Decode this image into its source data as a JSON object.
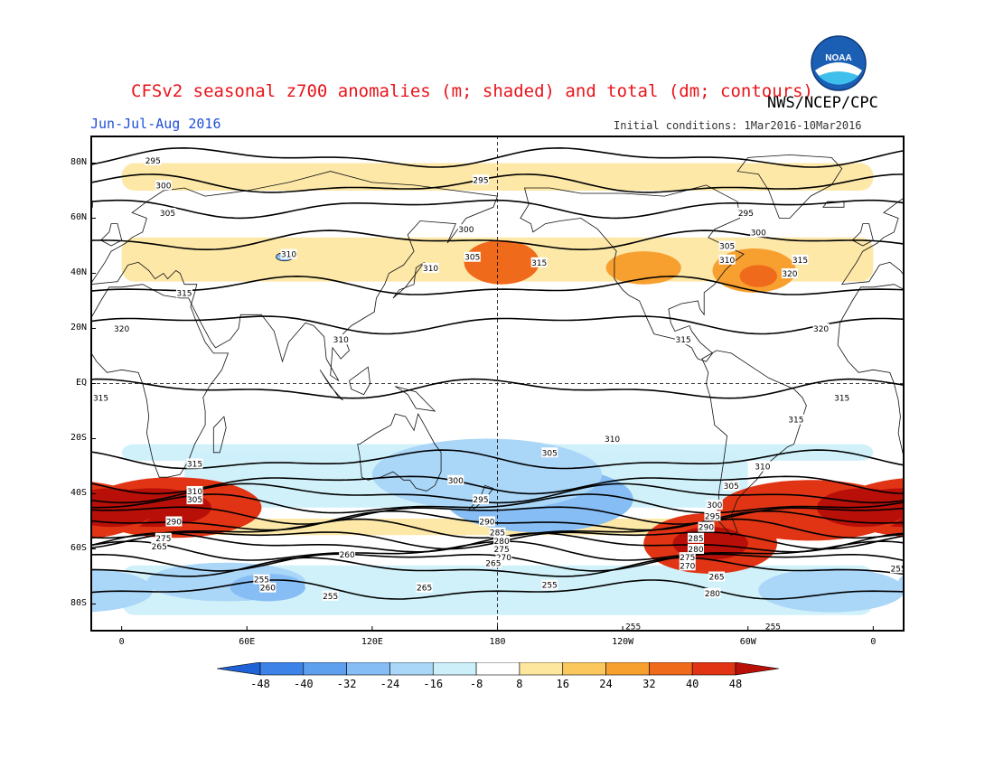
{
  "header": {
    "title": "CFSv2 seasonal z700 anomalies (m; shaded) and total (dm; contours)",
    "agency": "NWS/NCEP/CPC",
    "period": "Jun-Jul-Aug 2016",
    "initial_conditions": "Initial conditions: 1Mar2016-10Mar2016",
    "logo_text": "NOAA"
  },
  "axes": {
    "lat_labels": [
      "80N",
      "60N",
      "40N",
      "20N",
      "EQ",
      "20S",
      "40S",
      "60S",
      "80S"
    ],
    "lat_values": [
      80,
      60,
      40,
      20,
      0,
      -20,
      -40,
      -60,
      -80
    ],
    "lon_labels": [
      "0",
      "60E",
      "120E",
      "180",
      "120W",
      "60W",
      "0"
    ],
    "lon_values": [
      0,
      60,
      120,
      180,
      240,
      300,
      360
    ],
    "lon_range": [
      -15,
      375
    ],
    "lat_range": [
      -90,
      90
    ]
  },
  "colorbar": {
    "tick_labels": [
      "-48",
      "-40",
      "-32",
      "-24",
      "-16",
      "-8",
      "8",
      "16",
      "24",
      "32",
      "40",
      "48"
    ],
    "colors": [
      "#1f62d6",
      "#3d82e6",
      "#5fa0ee",
      "#86bdf5",
      "#aad6f8",
      "#cceffa",
      "#ffffff",
      "#fde69e",
      "#fbc85e",
      "#f7a030",
      "#f06a1c",
      "#e03414",
      "#b81008"
    ]
  },
  "anomaly_regions": [
    {
      "lon": 25,
      "lat": -45,
      "rx": 42,
      "ry": 11,
      "level": 5
    },
    {
      "lon": 15,
      "lat": -45,
      "rx": 28,
      "ry": 7,
      "level": 6
    },
    {
      "lon": 330,
      "lat": -46,
      "rx": 45,
      "ry": 11,
      "level": 5
    },
    {
      "lon": 355,
      "lat": -45,
      "rx": 22,
      "ry": 7,
      "level": 6
    },
    {
      "lon": 282,
      "lat": -58,
      "rx": 32,
      "ry": 11,
      "level": 5
    },
    {
      "lon": 282,
      "lat": -58,
      "rx": 18,
      "ry": 6,
      "level": 6
    },
    {
      "lon": 182,
      "lat": 44,
      "rx": 18,
      "ry": 8,
      "level": 4
    },
    {
      "lon": 303,
      "lat": 41,
      "rx": 20,
      "ry": 8,
      "level": 3
    },
    {
      "lon": 305,
      "lat": 39,
      "rx": 9,
      "ry": 4,
      "level": 4
    },
    {
      "lon": 250,
      "lat": 42,
      "rx": 18,
      "ry": 6,
      "level": 3
    },
    {
      "lon": 200,
      "lat": -42,
      "rx": 45,
      "ry": 12,
      "level": -3
    },
    {
      "lon": 175,
      "lat": -33,
      "rx": 55,
      "ry": 13,
      "level": -2
    },
    {
      "lon": 50,
      "lat": -72,
      "rx": 38,
      "ry": 7,
      "level": -2
    },
    {
      "lon": 70,
      "lat": -74,
      "rx": 18,
      "ry": 5,
      "level": -3
    },
    {
      "lon": 340,
      "lat": -75,
      "rx": 35,
      "ry": 8,
      "level": -2
    }
  ],
  "anomaly_bands": [
    {
      "lon0": 0,
      "lon1": 360,
      "lat": -25,
      "h": 6,
      "level": -1
    },
    {
      "lon0": 30,
      "lon1": 300,
      "lat": -35,
      "h": 20,
      "level": -1
    },
    {
      "lon0": 0,
      "lon1": 360,
      "lat": -75,
      "h": 18,
      "level": -1
    },
    {
      "lon0": 0,
      "lon1": 360,
      "lat": 45,
      "h": 16,
      "level": 1
    },
    {
      "lon0": 0,
      "lon1": 360,
      "lat": 75,
      "h": 10,
      "level": 1
    },
    {
      "lon0": 0,
      "lon1": 360,
      "lat": -52,
      "h": 6,
      "level": 1
    }
  ],
  "contours": [
    {
      "label": "295",
      "lat": 82
    },
    {
      "label": "300",
      "lat": 72
    },
    {
      "label": "305",
      "lat": 64
    },
    {
      "label": "310",
      "lat": 52
    },
    {
      "label": "315",
      "lat": 35
    },
    {
      "label": "320",
      "lat": 22
    },
    {
      "label": "315",
      "lat": -2
    },
    {
      "label": "315",
      "lat": -28
    },
    {
      "label": "310",
      "lat": -36
    },
    {
      "label": "305",
      "lat": -40
    },
    {
      "label": "300",
      "lat": -44
    },
    {
      "label": "295",
      "lat": -47
    },
    {
      "label": "290",
      "lat": -50
    },
    {
      "label": "285",
      "lat": -53
    },
    {
      "label": "280",
      "lat": -56
    },
    {
      "label": "275",
      "lat": -58
    },
    {
      "label": "270",
      "lat": -61
    },
    {
      "label": "265",
      "lat": -64
    },
    {
      "label": "260",
      "lat": -67
    },
    {
      "label": "255",
      "lat": -75
    }
  ],
  "contour_labels": [
    {
      "text": "295",
      "lon": 15,
      "lat": 81
    },
    {
      "text": "300",
      "lon": 20,
      "lat": 72
    },
    {
      "text": "305",
      "lon": 22,
      "lat": 62
    },
    {
      "text": "310",
      "lon": 80,
      "lat": 47
    },
    {
      "text": "315",
      "lon": 30,
      "lat": 33
    },
    {
      "text": "320",
      "lon": 0,
      "lat": 20
    },
    {
      "text": "310",
      "lon": 105,
      "lat": 16
    },
    {
      "text": "295",
      "lon": 172,
      "lat": 74
    },
    {
      "text": "300",
      "lon": 165,
      "lat": 56
    },
    {
      "text": "305",
      "lon": 168,
      "lat": 46
    },
    {
      "text": "310",
      "lon": 148,
      "lat": 42
    },
    {
      "text": "315",
      "lon": 200,
      "lat": 44
    },
    {
      "text": "315",
      "lon": 269,
      "lat": 16
    },
    {
      "text": "295",
      "lon": 299,
      "lat": 62
    },
    {
      "text": "300",
      "lon": 305,
      "lat": 55
    },
    {
      "text": "305",
      "lon": 290,
      "lat": 50
    },
    {
      "text": "310",
      "lon": 290,
      "lat": 45
    },
    {
      "text": "315",
      "lon": 325,
      "lat": 45
    },
    {
      "text": "320",
      "lon": 320,
      "lat": 40
    },
    {
      "text": "320",
      "lon": 335,
      "lat": 20
    },
    {
      "text": "315",
      "lon": -10,
      "lat": -5
    },
    {
      "text": "315",
      "lon": 345,
      "lat": -5
    },
    {
      "text": "315",
      "lon": 323,
      "lat": -13
    },
    {
      "text": "310",
      "lon": 235,
      "lat": -20
    },
    {
      "text": "305",
      "lon": 205,
      "lat": -25
    },
    {
      "text": "300",
      "lon": 160,
      "lat": -35
    },
    {
      "text": "295",
      "lon": 172,
      "lat": -42
    },
    {
      "text": "290",
      "lon": 175,
      "lat": -50
    },
    {
      "text": "285",
      "lon": 180,
      "lat": -54
    },
    {
      "text": "280",
      "lon": 182,
      "lat": -57
    },
    {
      "text": "275",
      "lon": 182,
      "lat": -60
    },
    {
      "text": "270",
      "lon": 183,
      "lat": -63
    },
    {
      "text": "265",
      "lon": 178,
      "lat": -65
    },
    {
      "text": "260",
      "lon": 108,
      "lat": -62
    },
    {
      "text": "255",
      "lon": 67,
      "lat": -71
    },
    {
      "text": "260",
      "lon": 70,
      "lat": -74
    },
    {
      "text": "255",
      "lon": 100,
      "lat": -77
    },
    {
      "text": "265",
      "lon": 145,
      "lat": -74
    },
    {
      "text": "255",
      "lon": 205,
      "lat": -73
    },
    {
      "text": "255",
      "lon": 245,
      "lat": -88
    },
    {
      "text": "310",
      "lon": 35,
      "lat": -39
    },
    {
      "text": "305",
      "lon": 35,
      "lat": -42
    },
    {
      "text": "315",
      "lon": 35,
      "lat": -29
    },
    {
      "text": "300",
      "lon": 284,
      "lat": -44
    },
    {
      "text": "295",
      "lon": 283,
      "lat": -48
    },
    {
      "text": "290",
      "lon": 280,
      "lat": -52
    },
    {
      "text": "285",
      "lon": 275,
      "lat": -56
    },
    {
      "text": "280",
      "lon": 275,
      "lat": -60
    },
    {
      "text": "275",
      "lon": 271,
      "lat": -63
    },
    {
      "text": "270",
      "lon": 271,
      "lat": -66
    },
    {
      "text": "265",
      "lon": 285,
      "lat": -70
    },
    {
      "text": "280",
      "lon": 283,
      "lat": -76
    },
    {
      "text": "255",
      "lon": 312,
      "lat": -88
    },
    {
      "text": "310",
      "lon": 307,
      "lat": -30
    },
    {
      "text": "305",
      "lon": 292,
      "lat": -37
    },
    {
      "text": "255",
      "lon": 372,
      "lat": -67
    },
    {
      "text": "290",
      "lon": 25,
      "lat": -50
    },
    {
      "text": "275",
      "lon": 20,
      "lat": -56
    },
    {
      "text": "265",
      "lon": 18,
      "lat": -59
    }
  ],
  "land": [
    [
      [
        -15,
        36
      ],
      [
        -8,
        44
      ],
      [
        -5,
        48
      ],
      [
        2,
        51
      ],
      [
        5,
        53
      ],
      [
        10,
        55
      ],
      [
        12,
        60
      ],
      [
        5,
        62
      ],
      [
        12,
        66
      ],
      [
        20,
        70
      ],
      [
        30,
        71
      ],
      [
        40,
        68
      ],
      [
        60,
        70
      ],
      [
        80,
        73
      ],
      [
        100,
        77
      ],
      [
        120,
        73
      ],
      [
        140,
        72
      ],
      [
        160,
        70
      ],
      [
        180,
        68
      ],
      [
        178,
        64
      ],
      [
        165,
        60
      ],
      [
        156,
        51
      ],
      [
        160,
        58
      ],
      [
        143,
        59
      ],
      [
        137,
        54
      ],
      [
        140,
        48
      ],
      [
        135,
        43
      ],
      [
        128,
        40
      ],
      [
        126,
        36
      ],
      [
        122,
        31
      ],
      [
        121,
        26
      ],
      [
        110,
        21
      ],
      [
        106,
        18
      ],
      [
        109,
        12
      ],
      [
        105,
        9
      ],
      [
        101,
        13
      ],
      [
        100,
        3
      ],
      [
        104,
        1
      ],
      [
        98,
        9
      ],
      [
        97,
        17
      ],
      [
        92,
        21
      ],
      [
        88,
        22
      ],
      [
        80,
        15
      ],
      [
        77,
        8
      ],
      [
        73,
        19
      ],
      [
        67,
        25
      ],
      [
        57,
        25
      ],
      [
        56,
        20
      ],
      [
        52,
        16
      ],
      [
        45,
        13
      ],
      [
        43,
        15
      ],
      [
        38,
        22
      ],
      [
        34,
        28
      ],
      [
        32,
        31
      ],
      [
        28,
        31
      ],
      [
        20,
        32
      ],
      [
        10,
        36
      ],
      [
        0,
        35
      ],
      [
        -6,
        35
      ],
      [
        -10,
        30
      ],
      [
        -16,
        22
      ],
      [
        -17,
        14
      ],
      [
        -12,
        8
      ],
      [
        -7,
        4
      ],
      [
        0,
        5
      ],
      [
        8,
        4
      ],
      [
        10,
        0
      ],
      [
        12,
        -6
      ],
      [
        13,
        -12
      ],
      [
        12,
        -18
      ],
      [
        15,
        -28
      ],
      [
        18,
        -34
      ],
      [
        22,
        -34
      ],
      [
        28,
        -33
      ],
      [
        32,
        -28
      ],
      [
        35,
        -22
      ],
      [
        40,
        -15
      ],
      [
        40,
        -10
      ],
      [
        39,
        -5
      ],
      [
        42,
        -1
      ],
      [
        48,
        5
      ],
      [
        51,
        11
      ],
      [
        44,
        11
      ],
      [
        40,
        15
      ],
      [
        36,
        22
      ],
      [
        33,
        28
      ],
      [
        35,
        33
      ],
      [
        36,
        36
      ],
      [
        30,
        36
      ],
      [
        28,
        40
      ],
      [
        26,
        41
      ],
      [
        22,
        38
      ],
      [
        20,
        40
      ],
      [
        16,
        38
      ],
      [
        13,
        41
      ],
      [
        8,
        44
      ],
      [
        3,
        43
      ],
      [
        -2,
        37
      ],
      [
        -15,
        36
      ]
    ],
    [
      [
        113,
        -22
      ],
      [
        114,
        -26
      ],
      [
        115,
        -34
      ],
      [
        118,
        -35
      ],
      [
        124,
        -34
      ],
      [
        130,
        -32
      ],
      [
        135,
        -35
      ],
      [
        138,
        -35
      ],
      [
        141,
        -38
      ],
      [
        146,
        -39
      ],
      [
        150,
        -37
      ],
      [
        153,
        -32
      ],
      [
        153,
        -25
      ],
      [
        150,
        -22
      ],
      [
        145,
        -15
      ],
      [
        142,
        -11
      ],
      [
        140,
        -17
      ],
      [
        136,
        -12
      ],
      [
        131,
        -11
      ],
      [
        129,
        -15
      ],
      [
        122,
        -18
      ],
      [
        114,
        -22
      ],
      [
        113,
        -22
      ]
    ],
    [
      [
        191,
        60
      ],
      [
        195,
        65
      ],
      [
        193,
        71
      ],
      [
        205,
        71
      ],
      [
        220,
        69
      ],
      [
        240,
        69
      ],
      [
        260,
        68
      ],
      [
        280,
        72
      ],
      [
        295,
        66
      ],
      [
        296,
        60
      ],
      [
        284,
        56
      ],
      [
        281,
        53
      ],
      [
        292,
        49
      ],
      [
        298,
        47
      ],
      [
        293,
        44
      ],
      [
        289,
        41
      ],
      [
        284,
        36
      ],
      [
        279,
        33
      ],
      [
        279,
        28
      ],
      [
        279,
        25
      ],
      [
        277,
        27
      ],
      [
        276,
        30
      ],
      [
        268,
        29
      ],
      [
        262,
        27
      ],
      [
        263,
        22
      ],
      [
        265,
        19
      ],
      [
        272,
        21
      ],
      [
        273,
        19
      ],
      [
        277,
        15
      ],
      [
        283,
        11
      ],
      [
        280,
        8
      ],
      [
        276,
        9
      ],
      [
        275,
        10
      ],
      [
        273,
        13
      ],
      [
        266,
        16
      ],
      [
        255,
        18
      ],
      [
        252,
        23
      ],
      [
        248,
        30
      ],
      [
        243,
        32
      ],
      [
        240,
        34
      ],
      [
        236,
        38
      ],
      [
        236,
        45
      ],
      [
        237,
        48
      ],
      [
        228,
        56
      ],
      [
        220,
        60
      ],
      [
        210,
        59
      ],
      [
        203,
        58
      ],
      [
        197,
        55
      ],
      [
        196,
        58
      ],
      [
        191,
        60
      ]
    ],
    [
      [
        280,
        0
      ],
      [
        282,
        -5
      ],
      [
        284,
        -15
      ],
      [
        290,
        -19
      ],
      [
        288,
        -30
      ],
      [
        286,
        -40
      ],
      [
        286,
        -50
      ],
      [
        292,
        -55
      ],
      [
        295,
        -54
      ],
      [
        292,
        -48
      ],
      [
        295,
        -42
      ],
      [
        300,
        -38
      ],
      [
        304,
        -35
      ],
      [
        311,
        -28
      ],
      [
        319,
        -23
      ],
      [
        322,
        -22
      ],
      [
        325,
        -15
      ],
      [
        328,
        -8
      ],
      [
        326,
        -5
      ],
      [
        322,
        -2
      ],
      [
        310,
        2
      ],
      [
        300,
        7
      ],
      [
        292,
        11
      ],
      [
        285,
        12
      ],
      [
        278,
        9
      ],
      [
        281,
        4
      ],
      [
        280,
        0
      ]
    ],
    [
      [
        315,
        60
      ],
      [
        320,
        60
      ],
      [
        330,
        68
      ],
      [
        340,
        72
      ],
      [
        345,
        78
      ],
      [
        340,
        82
      ],
      [
        320,
        83
      ],
      [
        300,
        82
      ],
      [
        295,
        77
      ],
      [
        305,
        76
      ],
      [
        310,
        70
      ],
      [
        315,
        60
      ]
    ],
    [
      [
        44,
        -25
      ],
      [
        47,
        -25
      ],
      [
        50,
        -16
      ],
      [
        49,
        -12
      ],
      [
        44,
        -16
      ],
      [
        44,
        -25
      ]
    ],
    [
      [
        166,
        -46
      ],
      [
        172,
        -41
      ],
      [
        174,
        -37
      ],
      [
        178,
        -38
      ],
      [
        174,
        -42
      ],
      [
        168,
        -46
      ],
      [
        166,
        -46
      ]
    ],
    [
      [
        130,
        31
      ],
      [
        133,
        34
      ],
      [
        140,
        36
      ],
      [
        141,
        42
      ],
      [
        145,
        44
      ],
      [
        141,
        40
      ],
      [
        136,
        35
      ],
      [
        130,
        31
      ]
    ],
    [
      [
        95,
        5
      ],
      [
        104,
        -5
      ],
      [
        106,
        -6
      ],
      [
        100,
        -1
      ],
      [
        95,
        5
      ]
    ],
    [
      [
        109,
        1
      ],
      [
        118,
        6
      ],
      [
        119,
        0
      ],
      [
        116,
        -4
      ],
      [
        110,
        -2
      ],
      [
        109,
        1
      ]
    ],
    [
      [
        131,
        -1
      ],
      [
        141,
        -3
      ],
      [
        150,
        -10
      ],
      [
        141,
        -9
      ],
      [
        137,
        -4
      ],
      [
        131,
        -1
      ]
    ],
    [
      [
        -10,
        52
      ],
      [
        -6,
        55
      ],
      [
        -5,
        58
      ],
      [
        -2,
        58
      ],
      [
        0,
        52
      ],
      [
        -5,
        50
      ],
      [
        -10,
        52
      ]
    ],
    [
      [
        -24,
        64
      ],
      [
        -14,
        64
      ],
      [
        -14,
        66
      ],
      [
        -22,
        66
      ],
      [
        -24,
        64
      ]
    ]
  ],
  "lakes": [
    {
      "lon": 78,
      "lat": 46,
      "rx": 4,
      "ry": 1.5
    }
  ]
}
